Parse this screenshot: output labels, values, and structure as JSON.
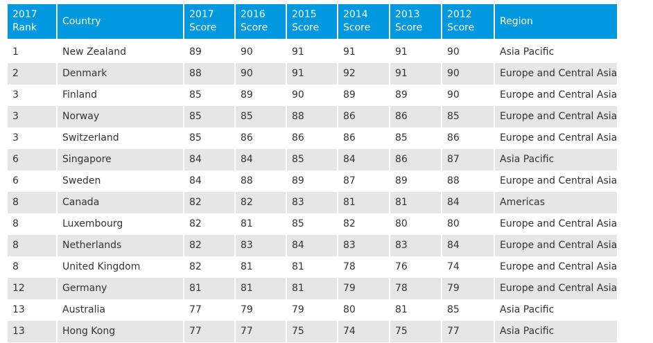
{
  "table": {
    "headers": [
      [
        "2017",
        "Rank"
      ],
      [
        "Country"
      ],
      [
        "2017",
        "Score"
      ],
      [
        "2016",
        "Score"
      ],
      [
        "2015",
        "Score"
      ],
      [
        "2014",
        "Score"
      ],
      [
        "2013",
        "Score"
      ],
      [
        "2012",
        "Score"
      ],
      [
        "Region"
      ]
    ],
    "rows": [
      [
        "1",
        "New Zealand",
        "89",
        "90",
        "91",
        "91",
        "91",
        "90",
        "Asia Pacific"
      ],
      [
        "2",
        "Denmark",
        "88",
        "90",
        "91",
        "92",
        "91",
        "90",
        "Europe and Central Asia"
      ],
      [
        "3",
        "Finland",
        "85",
        "89",
        "90",
        "89",
        "89",
        "90",
        "Europe and Central Asia"
      ],
      [
        "3",
        "Norway",
        "85",
        "85",
        "88",
        "86",
        "86",
        "85",
        "Europe and Central Asia"
      ],
      [
        "3",
        "Switzerland",
        "85",
        "86",
        "86",
        "86",
        "85",
        "86",
        "Europe and Central Asia"
      ],
      [
        "6",
        "Singapore",
        "84",
        "84",
        "85",
        "84",
        "86",
        "87",
        "Asia Pacific"
      ],
      [
        "6",
        "Sweden",
        "84",
        "88",
        "89",
        "87",
        "89",
        "88",
        "Europe and Central Asia"
      ],
      [
        "8",
        "Canada",
        "82",
        "82",
        "83",
        "81",
        "81",
        "84",
        "Americas"
      ],
      [
        "8",
        "Luxembourg",
        "82",
        "81",
        "85",
        "82",
        "80",
        "80",
        "Europe and Central Asia"
      ],
      [
        "8",
        "Netherlands",
        "82",
        "83",
        "84",
        "83",
        "83",
        "84",
        "Europe and Central Asia"
      ],
      [
        "8",
        "United Kingdom",
        "82",
        "81",
        "81",
        "78",
        "76",
        "74",
        "Europe and Central Asia"
      ],
      [
        "12",
        "Germany",
        "81",
        "81",
        "81",
        "79",
        "78",
        "79",
        "Europe and Central Asia"
      ],
      [
        "13",
        "Australia",
        "77",
        "79",
        "79",
        "80",
        "81",
        "85",
        "Asia Pacific"
      ],
      [
        "13",
        "Hong Kong",
        "77",
        "77",
        "75",
        "74",
        "75",
        "77",
        "Asia Pacific"
      ]
    ]
  },
  "colors": {
    "header_bg": "#0099df",
    "header_text": "#ffffff",
    "alt_row_bg": "#e6e6e6",
    "text": "#333333"
  }
}
